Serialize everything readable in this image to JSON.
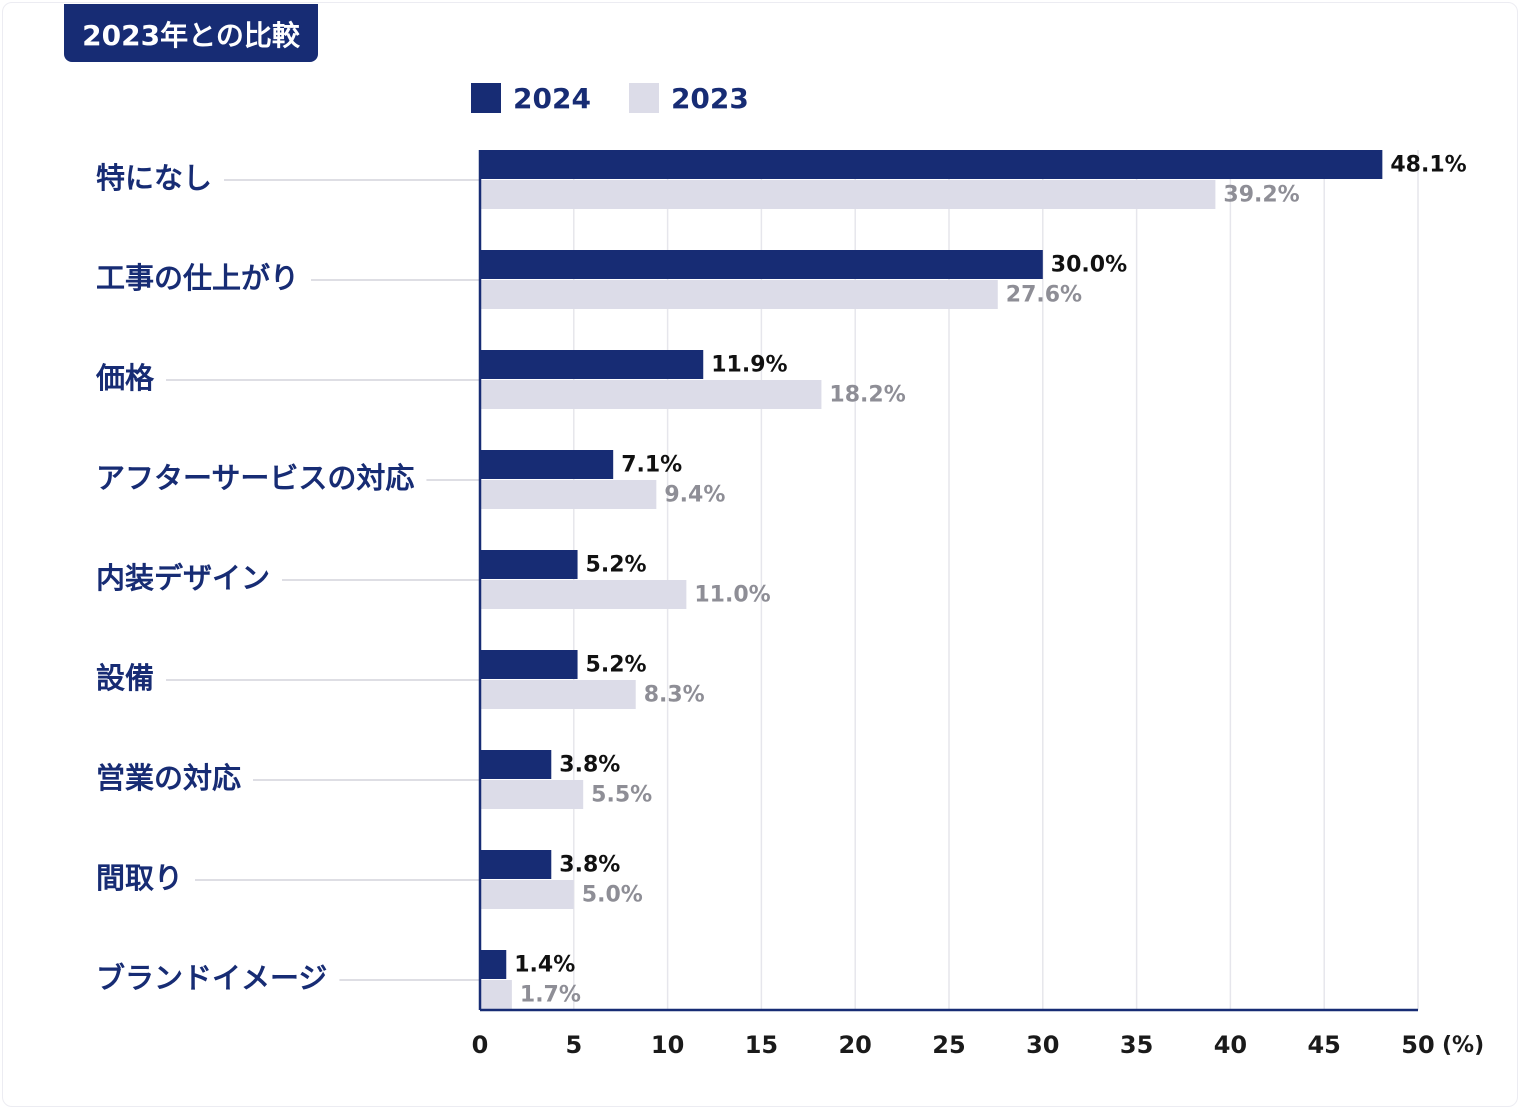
{
  "header": {
    "title": "2023年との比較"
  },
  "legend": [
    {
      "label": "2024",
      "color": "#172c74"
    },
    {
      "label": "2023",
      "color": "#dcdce8"
    }
  ],
  "chart_data": {
    "type": "bar",
    "orientation": "horizontal",
    "title": "2023年との比較",
    "categories": [
      "特になし",
      "工事の仕上がり",
      "価格",
      "アフターサービスの対応",
      "内装デザイン",
      "設備",
      "営業の対応",
      "間取り",
      "ブランドイメージ"
    ],
    "series": [
      {
        "name": "2024",
        "color": "#172c74",
        "values": [
          48.1,
          30.0,
          11.9,
          7.1,
          5.2,
          5.2,
          3.8,
          3.8,
          1.4
        ],
        "labels": [
          "48.1%",
          "30.0%",
          "11.9%",
          "7.1%",
          "5.2%",
          "5.2%",
          "3.8%",
          "3.8%",
          "1.4%"
        ]
      },
      {
        "name": "2023",
        "color": "#dcdce8",
        "values": [
          39.2,
          27.6,
          18.2,
          9.4,
          11.0,
          8.3,
          5.5,
          5.0,
          1.7
        ],
        "labels": [
          "39.2%",
          "27.6%",
          "18.2%",
          "9.4%",
          "11.0%",
          "8.3%",
          "5.5%",
          "5.0%",
          "1.7%"
        ]
      }
    ],
    "xlim": [
      0,
      50
    ],
    "xticks": [
      "0",
      "5",
      "10",
      "15",
      "20",
      "25",
      "30",
      "35",
      "40",
      "45",
      "50"
    ],
    "xunit": "(%)",
    "grid": true,
    "legend_position": "top"
  }
}
